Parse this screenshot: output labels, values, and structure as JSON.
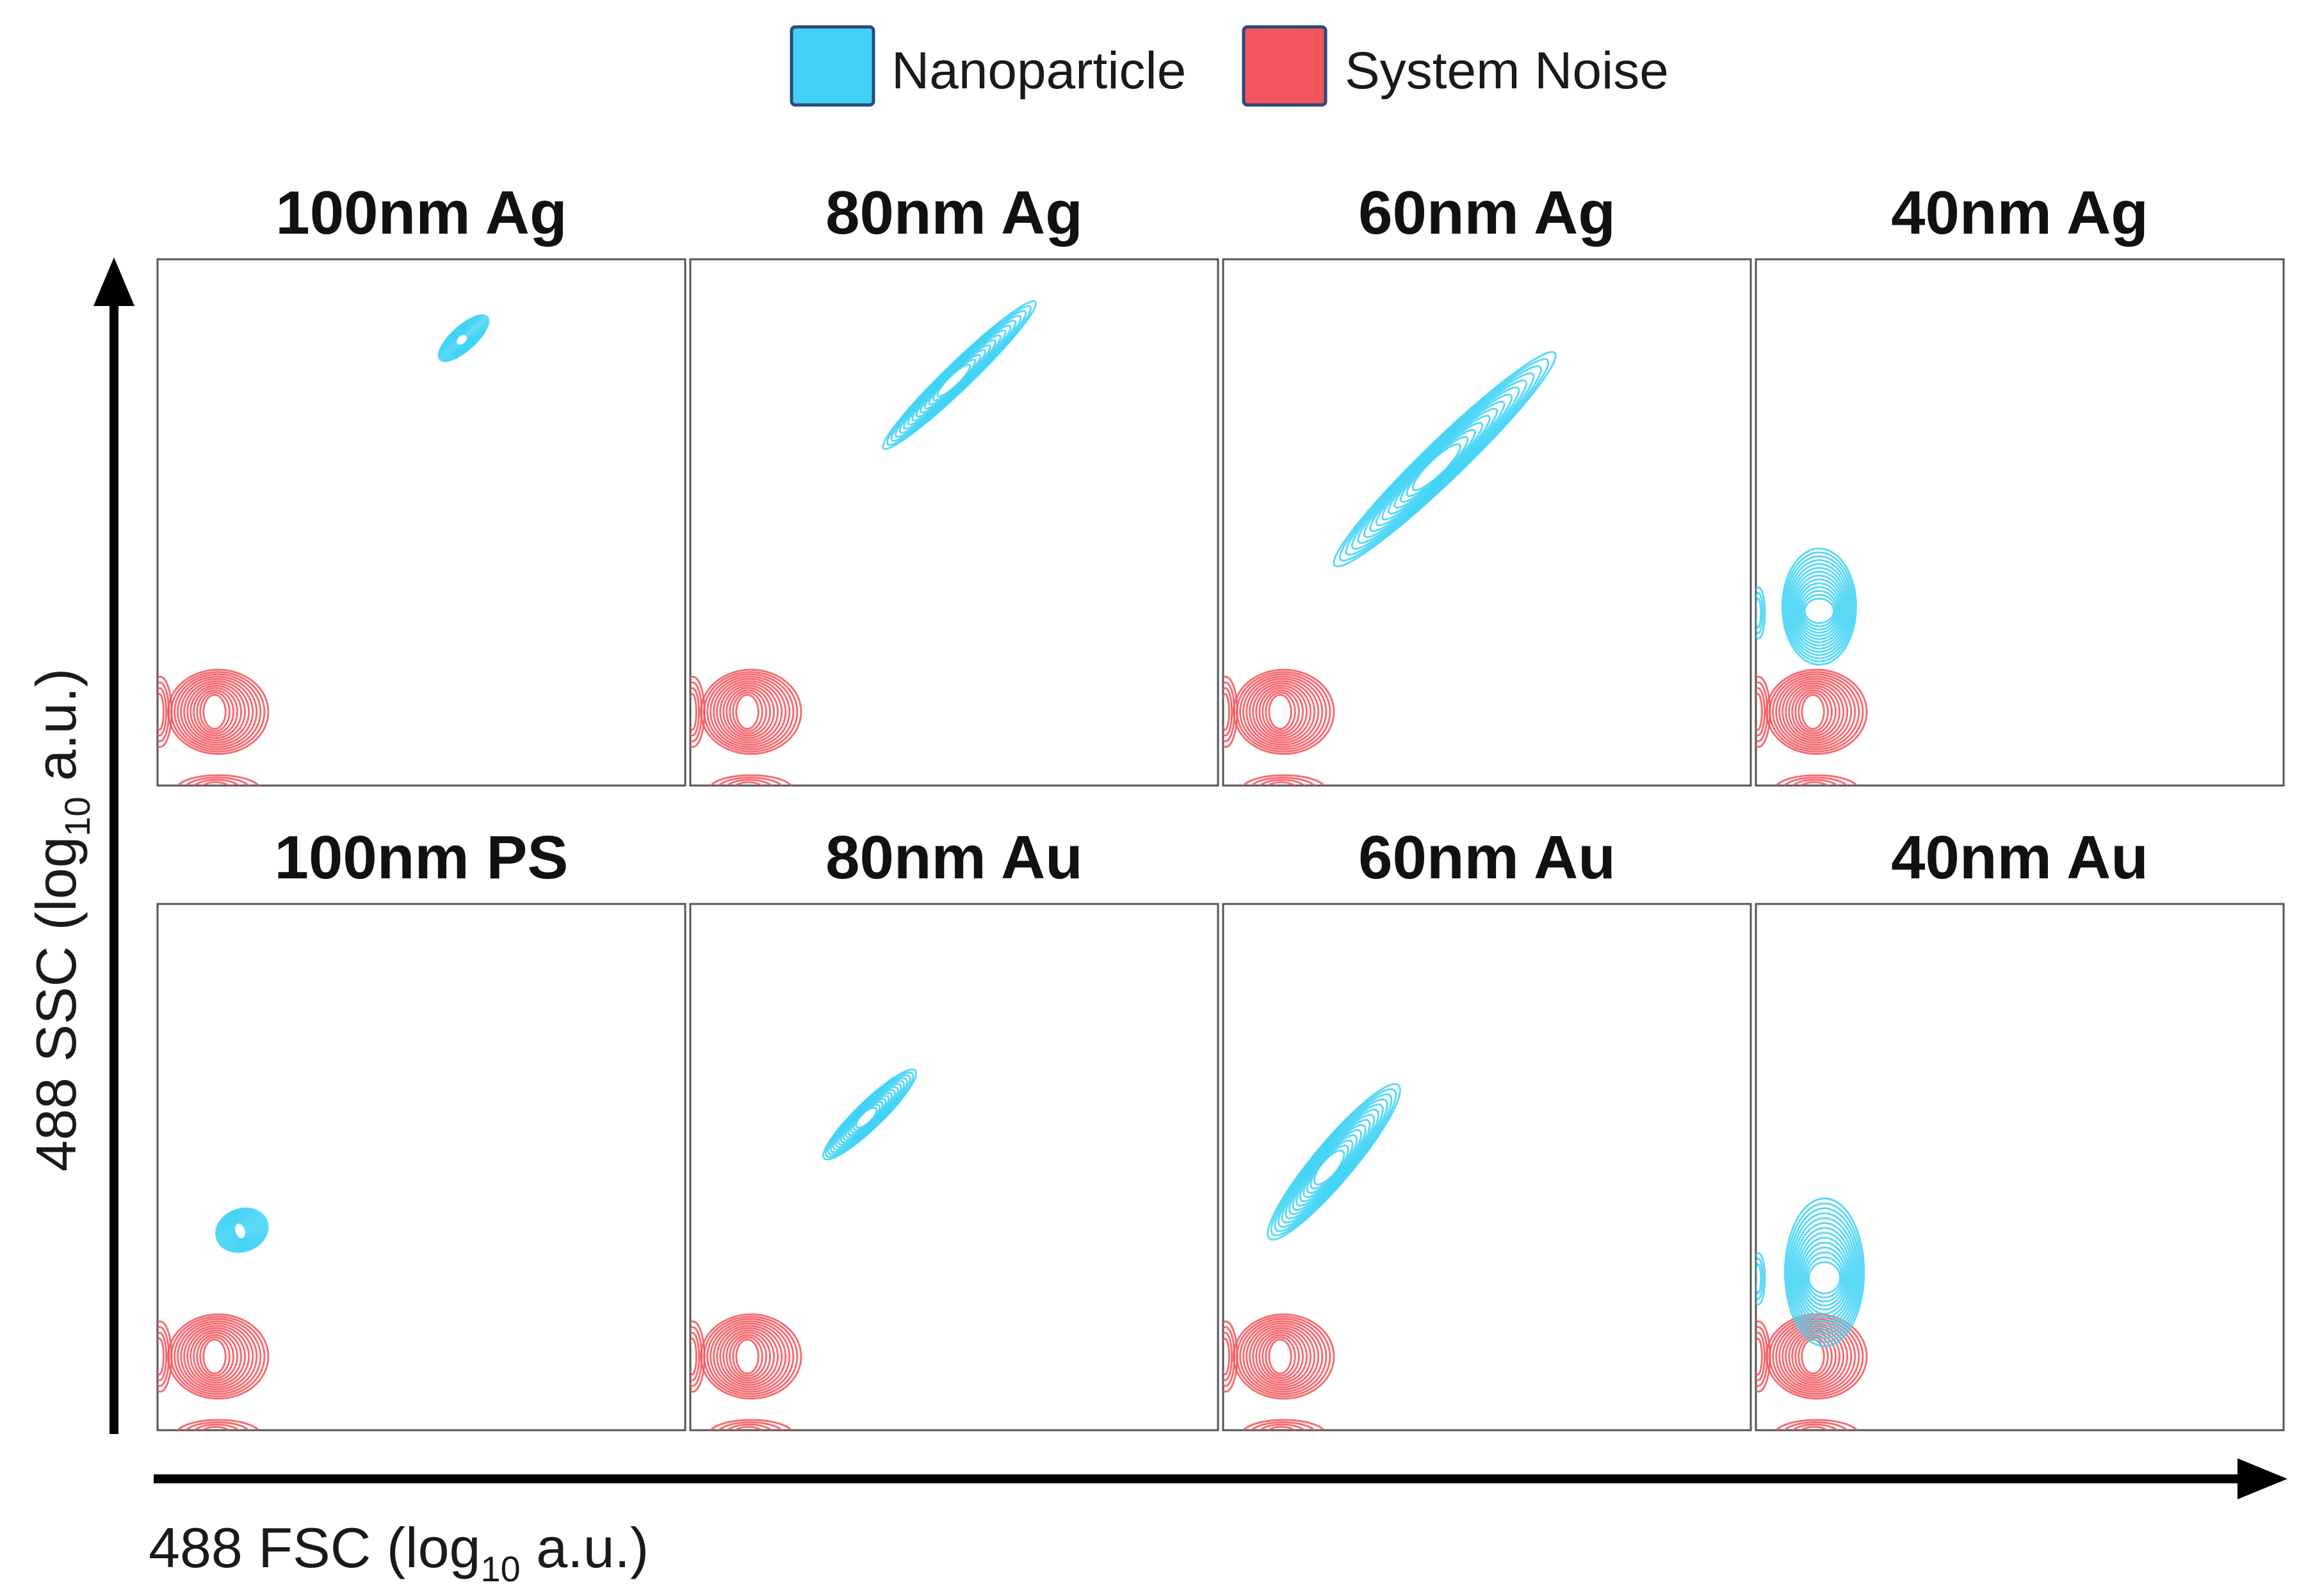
{
  "chart_data": {
    "type": "contour",
    "xlabel": "488 FSC (log10 a.u.)",
    "ylabel": "488 SSC (log10 a.u.)",
    "axis_label_parts": {
      "x": {
        "prefix": "488 FSC (log",
        "sub": "10",
        "suffix": " a.u.)"
      },
      "y": {
        "prefix": "488 SSC (log",
        "sub": "10",
        "suffix": " a.u.)"
      }
    },
    "legend": {
      "placement": "top-center",
      "entries": [
        {
          "name": "Nanoparticle",
          "color": "#3fd2f4"
        },
        {
          "name": "System Noise",
          "color": "#f2555c"
        }
      ]
    },
    "xlim": [
      0,
      1
    ],
    "ylim": [
      0,
      1
    ],
    "grid": false,
    "panels": [
      {
        "title": "100nm Ag",
        "particle": {
          "cx": 0.58,
          "cy": 0.85,
          "len": 0.12,
          "wid": 0.045,
          "angle": 42
        }
      },
      {
        "title": "80nm Ag",
        "particle": {
          "cx": 0.51,
          "cy": 0.78,
          "len": 0.4,
          "wid": 0.05,
          "angle": 44
        }
      },
      {
        "title": "60nm Ag",
        "particle": {
          "cx": 0.42,
          "cy": 0.62,
          "len": 0.58,
          "wid": 0.075,
          "angle": 44
        }
      },
      {
        "title": "40nm Ag",
        "particle": {
          "cx": 0.12,
          "cy": 0.34,
          "len": 0.22,
          "wid": 0.14,
          "angle": 90
        }
      },
      {
        "title": "100nm PS",
        "particle": {
          "cx": 0.16,
          "cy": 0.38,
          "len": 0.1,
          "wid": 0.08,
          "angle": 20
        }
      },
      {
        "title": "80nm Au",
        "particle": {
          "cx": 0.34,
          "cy": 0.6,
          "len": 0.24,
          "wid": 0.05,
          "angle": 44
        }
      },
      {
        "title": "60nm Au",
        "particle": {
          "cx": 0.21,
          "cy": 0.51,
          "len": 0.38,
          "wid": 0.075,
          "angle": 50
        }
      },
      {
        "title": "40nm Au",
        "particle": {
          "cx": 0.13,
          "cy": 0.3,
          "len": 0.28,
          "wid": 0.15,
          "angle": 90
        }
      }
    ],
    "noise": {
      "cx": 0.115,
      "cy": 0.14,
      "w": 0.19,
      "h": 0.16
    }
  }
}
